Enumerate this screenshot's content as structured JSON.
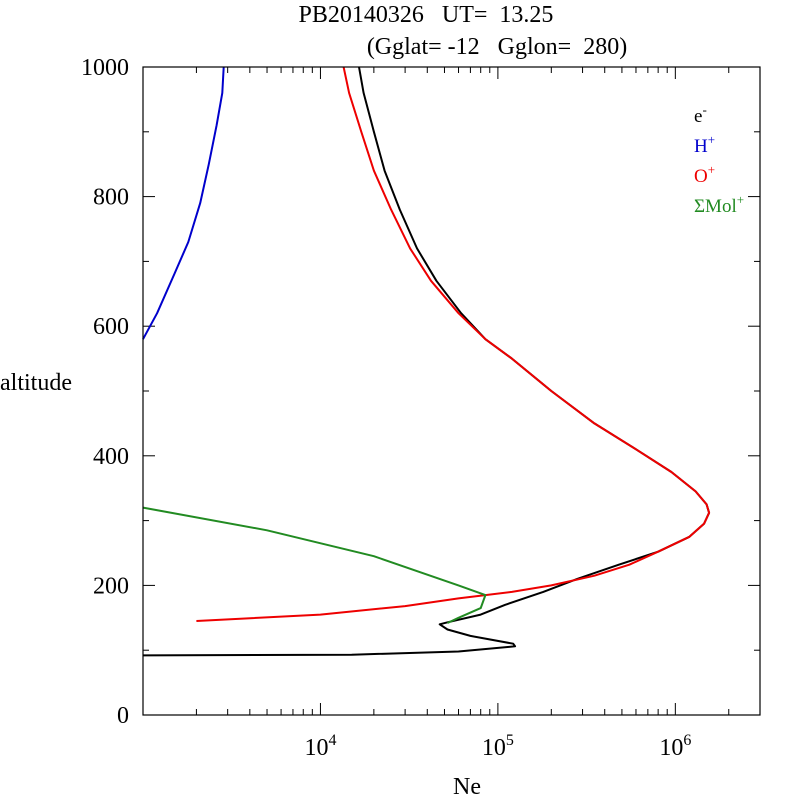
{
  "chart_data": {
    "type": "line",
    "title_line1": "PB20140326   UT=  13.25",
    "title_line2": "(Gglat= -12   Gglon=  280)",
    "xlabel": "Ne",
    "ylabel": "altitude",
    "xscale": "log",
    "xlim": [
      1000,
      3000000
    ],
    "ylim": [
      0,
      1000
    ],
    "x_tick_labels": [
      {
        "value": 10000,
        "base": "10",
        "exp": "4"
      },
      {
        "value": 100000,
        "base": "10",
        "exp": "5"
      },
      {
        "value": 1000000,
        "base": "10",
        "exp": "6"
      }
    ],
    "y_ticks": [
      0,
      200,
      400,
      600,
      800,
      1000
    ],
    "legend": "top-right",
    "series": [
      {
        "name": "e",
        "sup": "-",
        "color": "#000000",
        "points": [
          [
            1000,
            92
          ],
          [
            15000,
            93
          ],
          [
            60000,
            98
          ],
          [
            125000,
            106
          ],
          [
            122000,
            110
          ],
          [
            70000,
            122
          ],
          [
            52000,
            132
          ],
          [
            47000,
            140
          ],
          [
            52000,
            143
          ],
          [
            80000,
            155
          ],
          [
            110000,
            170
          ],
          [
            180000,
            190
          ],
          [
            280000,
            210
          ],
          [
            480000,
            232
          ],
          [
            800000,
            252
          ],
          [
            1200000,
            275
          ],
          [
            1450000,
            295
          ],
          [
            1550000,
            312
          ],
          [
            1500000,
            325
          ],
          [
            1300000,
            345
          ],
          [
            950000,
            375
          ],
          [
            600000,
            410
          ],
          [
            350000,
            450
          ],
          [
            200000,
            500
          ],
          [
            120000,
            550
          ],
          [
            85000,
            580
          ],
          [
            62000,
            620
          ],
          [
            45000,
            670
          ],
          [
            35000,
            720
          ],
          [
            28000,
            780
          ],
          [
            23000,
            840
          ],
          [
            20000,
            900
          ],
          [
            17500,
            960
          ],
          [
            16500,
            1000
          ]
        ]
      },
      {
        "name": "H",
        "sup": "+",
        "color": "#0000cc",
        "points": [
          [
            1000,
            580
          ],
          [
            1200,
            620
          ],
          [
            1500,
            680
          ],
          [
            1800,
            730
          ],
          [
            2100,
            790
          ],
          [
            2350,
            850
          ],
          [
            2600,
            910
          ],
          [
            2800,
            960
          ],
          [
            2850,
            1000
          ]
        ]
      },
      {
        "name": "O",
        "sup": "+",
        "color": "#ee0000",
        "points": [
          [
            2000,
            145
          ],
          [
            10000,
            155
          ],
          [
            30000,
            168
          ],
          [
            60000,
            180
          ],
          [
            120000,
            190
          ],
          [
            200000,
            200
          ],
          [
            350000,
            215
          ],
          [
            550000,
            232
          ],
          [
            800000,
            252
          ],
          [
            1200000,
            275
          ],
          [
            1450000,
            295
          ],
          [
            1550000,
            312
          ],
          [
            1500000,
            325
          ],
          [
            1300000,
            345
          ],
          [
            950000,
            375
          ],
          [
            600000,
            410
          ],
          [
            350000,
            450
          ],
          [
            200000,
            500
          ],
          [
            120000,
            550
          ],
          [
            85000,
            580
          ],
          [
            60000,
            620
          ],
          [
            42000,
            670
          ],
          [
            32000,
            720
          ],
          [
            25000,
            780
          ],
          [
            20000,
            840
          ],
          [
            17000,
            900
          ],
          [
            14500,
            960
          ],
          [
            13500,
            1000
          ]
        ]
      },
      {
        "name": "ΣMol",
        "sup": "+",
        "color": "#228b22",
        "points": [
          [
            1000,
            320
          ],
          [
            5000,
            285
          ],
          [
            20000,
            245
          ],
          [
            60000,
            200
          ],
          [
            85000,
            185
          ],
          [
            80000,
            165
          ],
          [
            60000,
            150
          ],
          [
            52000,
            142
          ]
        ]
      }
    ]
  }
}
